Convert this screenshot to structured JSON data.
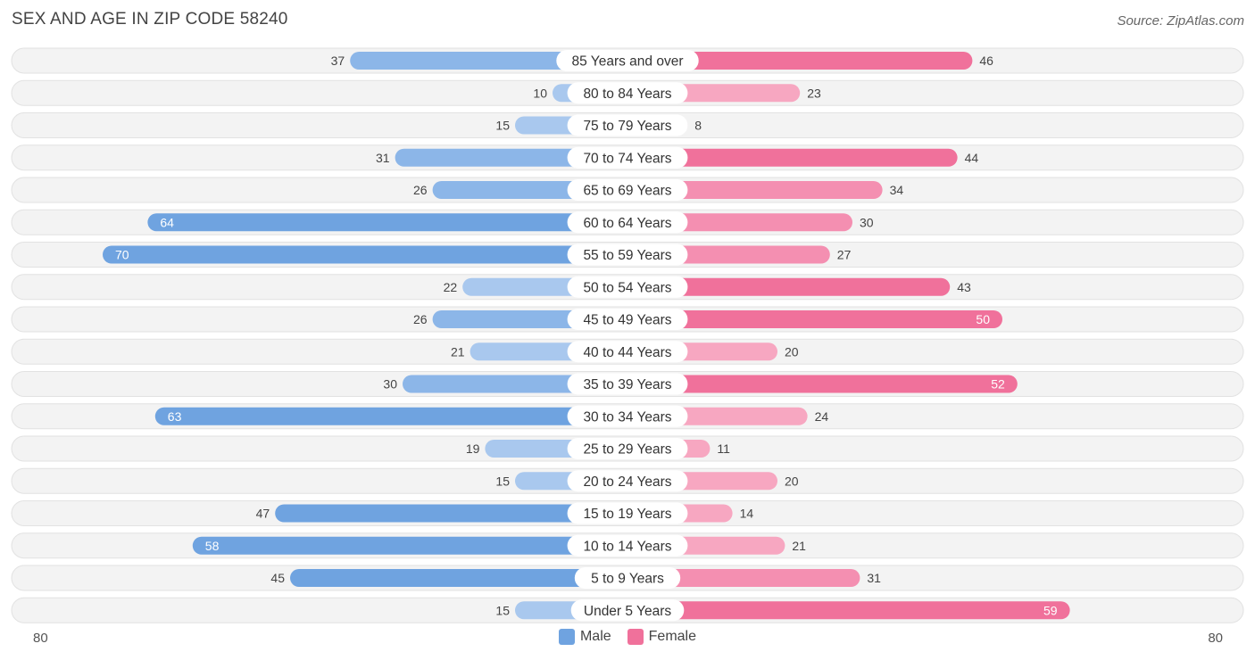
{
  "header": {
    "title": "SEX AND AGE IN ZIP CODE 58240",
    "source": "Source: ZipAtlas.com"
  },
  "colors": {
    "male": "#6fa3e0",
    "male_light": "#a9c8ee",
    "female": "#f0719b",
    "female_light": "#f7a7c1"
  },
  "legend": {
    "male_label": "Male",
    "female_label": "Female"
  },
  "axis": {
    "left_label": "80",
    "right_label": "80"
  },
  "chart_data": {
    "type": "bar",
    "orientation": "horizontal-diverging",
    "title": "SEX AND AGE IN ZIP CODE 58240",
    "xlim": [
      0,
      80
    ],
    "categories": [
      "85 Years and over",
      "80 to 84 Years",
      "75 to 79 Years",
      "70 to 74 Years",
      "65 to 69 Years",
      "60 to 64 Years",
      "55 to 59 Years",
      "50 to 54 Years",
      "45 to 49 Years",
      "40 to 44 Years",
      "35 to 39 Years",
      "30 to 34 Years",
      "25 to 29 Years",
      "20 to 24 Years",
      "15 to 19 Years",
      "10 to 14 Years",
      "5 to 9 Years",
      "Under 5 Years"
    ],
    "series": [
      {
        "name": "Male",
        "values": [
          37,
          10,
          15,
          31,
          26,
          64,
          70,
          22,
          26,
          21,
          30,
          63,
          19,
          15,
          47,
          58,
          45,
          15
        ]
      },
      {
        "name": "Female",
        "values": [
          46,
          23,
          8,
          44,
          34,
          30,
          27,
          43,
          50,
          20,
          52,
          24,
          11,
          20,
          14,
          21,
          31,
          59
        ]
      }
    ],
    "legend_position": "bottom-center"
  }
}
